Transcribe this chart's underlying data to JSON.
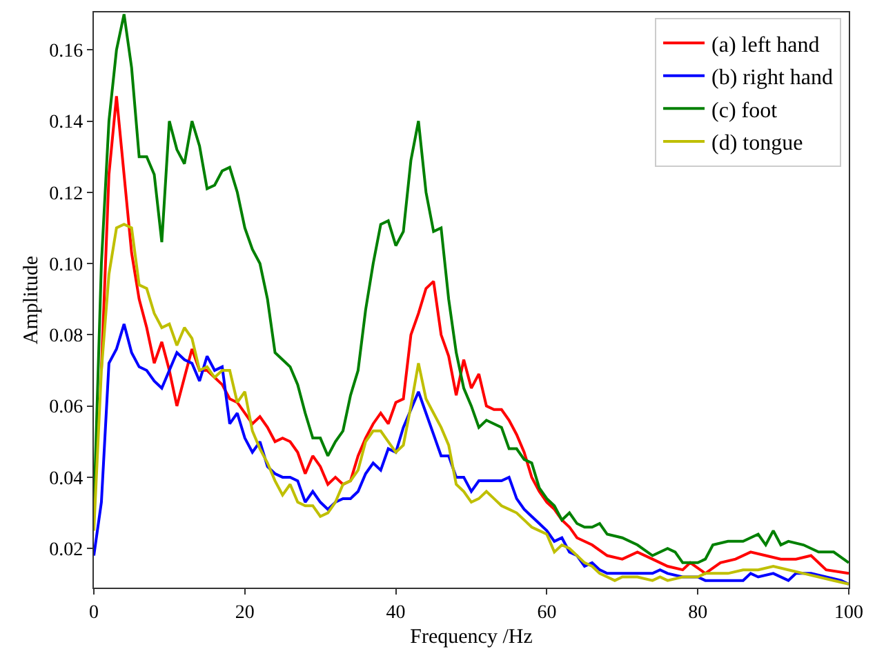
{
  "chart_data": {
    "type": "line",
    "xlabel": "Frequency /Hz",
    "ylabel": "Amplitude",
    "xlim": [
      0,
      100
    ],
    "xticks": [
      0,
      20,
      40,
      60,
      80,
      100
    ],
    "ylim": [
      0.009,
      0.1705
    ],
    "yticks": [
      {
        "value": 0.02,
        "label": "0.02"
      },
      {
        "value": 0.04,
        "label": "0.04"
      },
      {
        "value": 0.06,
        "label": "0.06"
      },
      {
        "value": 0.08,
        "label": "0.08"
      },
      {
        "value": 0.1,
        "label": "0.10"
      },
      {
        "value": 0.12,
        "label": "0.12"
      },
      {
        "value": 0.14,
        "label": "0.14"
      },
      {
        "value": 0.16,
        "label": "0.16"
      }
    ],
    "grid": false,
    "legend": "top right",
    "marker": "none",
    "line_style": "solid",
    "series": [
      {
        "name": "(a) left hand",
        "color": "#ff0000",
        "x": [
          1,
          2,
          3,
          4,
          5,
          6,
          7,
          8,
          9,
          10,
          11,
          12,
          13,
          14,
          15,
          16,
          17,
          18,
          19,
          20,
          21,
          22,
          23,
          24,
          25,
          26,
          27,
          28,
          29,
          30,
          31,
          32,
          33,
          34,
          35,
          36,
          37,
          38,
          39,
          40,
          41,
          42,
          43,
          44,
          45,
          46,
          47,
          48,
          49,
          50,
          51,
          52,
          53,
          54,
          55,
          56,
          57,
          58,
          59,
          60,
          61,
          62,
          63,
          64,
          66,
          68,
          70,
          72,
          74,
          76,
          78,
          79,
          81,
          83,
          85,
          87,
          89,
          91,
          93,
          95,
          97,
          100
        ],
        "values": [
          0.07,
          0.125,
          0.147,
          0.125,
          0.103,
          0.09,
          0.082,
          0.072,
          0.078,
          0.07,
          0.06,
          0.068,
          0.076,
          0.07,
          0.07,
          0.068,
          0.066,
          0.062,
          0.061,
          0.058,
          0.055,
          0.057,
          0.054,
          0.05,
          0.051,
          0.05,
          0.047,
          0.041,
          0.046,
          0.043,
          0.038,
          0.04,
          0.038,
          0.039,
          0.046,
          0.051,
          0.055,
          0.058,
          0.055,
          0.061,
          0.062,
          0.08,
          0.086,
          0.093,
          0.095,
          0.08,
          0.074,
          0.063,
          0.073,
          0.065,
          0.069,
          0.06,
          0.059,
          0.059,
          0.056,
          0.052,
          0.047,
          0.04,
          0.036,
          0.033,
          0.031,
          0.028,
          0.026,
          0.023,
          0.021,
          0.018,
          0.017,
          0.019,
          0.017,
          0.015,
          0.014,
          0.016,
          0.013,
          0.016,
          0.017,
          0.019,
          0.018,
          0.017,
          0.017,
          0.018,
          0.014,
          0.013
        ]
      },
      {
        "name": "(b) right hand",
        "color": "#0000ff",
        "x": [
          0,
          1,
          2,
          3,
          4,
          5,
          6,
          7,
          8,
          9,
          10,
          11,
          12,
          13,
          14,
          15,
          16,
          17,
          18,
          19,
          20,
          21,
          22,
          23,
          24,
          25,
          26,
          27,
          28,
          29,
          30,
          31,
          32,
          33,
          34,
          35,
          36,
          37,
          38,
          39,
          40,
          41,
          42,
          43,
          44,
          45,
          46,
          47,
          48,
          49,
          50,
          51,
          52,
          53,
          54,
          55,
          56,
          57,
          58,
          59,
          60,
          61,
          62,
          63,
          64,
          65,
          66,
          67,
          68,
          70,
          72,
          74,
          75,
          76,
          78,
          80,
          81,
          82,
          84,
          86,
          87,
          88,
          90,
          92,
          93,
          95,
          97,
          99,
          100
        ],
        "values": [
          0.018,
          0.033,
          0.072,
          0.076,
          0.083,
          0.075,
          0.071,
          0.07,
          0.067,
          0.065,
          0.07,
          0.075,
          0.073,
          0.072,
          0.067,
          0.074,
          0.07,
          0.071,
          0.055,
          0.058,
          0.051,
          0.047,
          0.05,
          0.043,
          0.041,
          0.04,
          0.04,
          0.039,
          0.033,
          0.036,
          0.033,
          0.031,
          0.033,
          0.034,
          0.034,
          0.036,
          0.041,
          0.044,
          0.042,
          0.048,
          0.047,
          0.054,
          0.059,
          0.064,
          0.058,
          0.052,
          0.046,
          0.046,
          0.04,
          0.04,
          0.036,
          0.039,
          0.039,
          0.039,
          0.039,
          0.04,
          0.034,
          0.031,
          0.029,
          0.027,
          0.025,
          0.022,
          0.023,
          0.019,
          0.018,
          0.015,
          0.016,
          0.014,
          0.013,
          0.013,
          0.013,
          0.013,
          0.014,
          0.013,
          0.012,
          0.012,
          0.011,
          0.011,
          0.011,
          0.011,
          0.013,
          0.012,
          0.013,
          0.011,
          0.013,
          0.013,
          0.012,
          0.011,
          0.01
        ]
      },
      {
        "name": "(c) foot",
        "color": "#008000",
        "x": [
          0,
          1,
          2,
          3,
          4,
          5,
          6,
          7,
          8,
          9,
          10,
          11,
          12,
          13,
          14,
          15,
          16,
          17,
          18,
          19,
          20,
          21,
          22,
          23,
          24,
          25,
          26,
          27,
          28,
          29,
          30,
          31,
          32,
          33,
          34,
          35,
          36,
          37,
          38,
          39,
          40,
          41,
          42,
          43,
          44,
          45,
          46,
          47,
          48,
          49,
          50,
          51,
          52,
          53,
          54,
          55,
          56,
          57,
          58,
          59,
          60,
          61,
          62,
          63,
          64,
          65,
          66,
          67,
          68,
          70,
          72,
          74,
          76,
          77,
          78,
          80,
          81,
          82,
          84,
          86,
          88,
          89,
          90,
          91,
          92,
          94,
          96,
          98,
          100
        ],
        "values": [
          0.03,
          0.1,
          0.14,
          0.16,
          0.17,
          0.155,
          0.13,
          0.13,
          0.125,
          0.106,
          0.14,
          0.132,
          0.128,
          0.14,
          0.133,
          0.121,
          0.122,
          0.126,
          0.127,
          0.12,
          0.11,
          0.104,
          0.1,
          0.09,
          0.075,
          0.073,
          0.071,
          0.066,
          0.058,
          0.051,
          0.051,
          0.046,
          0.05,
          0.053,
          0.063,
          0.07,
          0.087,
          0.1,
          0.111,
          0.112,
          0.105,
          0.109,
          0.129,
          0.14,
          0.12,
          0.109,
          0.11,
          0.09,
          0.075,
          0.065,
          0.06,
          0.054,
          0.056,
          0.055,
          0.054,
          0.048,
          0.048,
          0.045,
          0.044,
          0.037,
          0.034,
          0.032,
          0.028,
          0.03,
          0.027,
          0.026,
          0.026,
          0.027,
          0.024,
          0.023,
          0.021,
          0.018,
          0.02,
          0.019,
          0.016,
          0.016,
          0.017,
          0.021,
          0.022,
          0.022,
          0.024,
          0.021,
          0.025,
          0.021,
          0.022,
          0.021,
          0.019,
          0.019,
          0.016
        ]
      },
      {
        "name": "(d) tongue",
        "color": "#bfbf00",
        "x": [
          0,
          1,
          2,
          3,
          4,
          5,
          6,
          7,
          8,
          9,
          10,
          11,
          12,
          13,
          14,
          15,
          16,
          17,
          18,
          19,
          20,
          21,
          22,
          23,
          24,
          25,
          26,
          27,
          28,
          29,
          30,
          31,
          32,
          33,
          34,
          35,
          36,
          37,
          38,
          39,
          40,
          41,
          42,
          43,
          44,
          45,
          46,
          47,
          48,
          49,
          50,
          51,
          52,
          53,
          54,
          55,
          56,
          57,
          58,
          59,
          60,
          61,
          62,
          63,
          64,
          65,
          66,
          67,
          68,
          69,
          70,
          72,
          74,
          75,
          76,
          78,
          80,
          81,
          82,
          84,
          86,
          88,
          90,
          92,
          94,
          96,
          98,
          100
        ],
        "values": [
          0.025,
          0.07,
          0.097,
          0.11,
          0.111,
          0.11,
          0.094,
          0.093,
          0.086,
          0.082,
          0.083,
          0.077,
          0.082,
          0.079,
          0.07,
          0.071,
          0.068,
          0.07,
          0.07,
          0.061,
          0.064,
          0.053,
          0.048,
          0.044,
          0.039,
          0.035,
          0.038,
          0.033,
          0.032,
          0.032,
          0.029,
          0.03,
          0.033,
          0.038,
          0.039,
          0.042,
          0.05,
          0.053,
          0.053,
          0.05,
          0.047,
          0.049,
          0.06,
          0.072,
          0.062,
          0.058,
          0.054,
          0.049,
          0.038,
          0.036,
          0.033,
          0.034,
          0.036,
          0.034,
          0.032,
          0.031,
          0.03,
          0.028,
          0.026,
          0.025,
          0.024,
          0.019,
          0.021,
          0.02,
          0.018,
          0.016,
          0.015,
          0.013,
          0.012,
          0.011,
          0.012,
          0.012,
          0.011,
          0.012,
          0.011,
          0.012,
          0.012,
          0.013,
          0.013,
          0.013,
          0.014,
          0.014,
          0.015,
          0.014,
          0.013,
          0.012,
          0.011,
          0.01
        ]
      }
    ]
  }
}
